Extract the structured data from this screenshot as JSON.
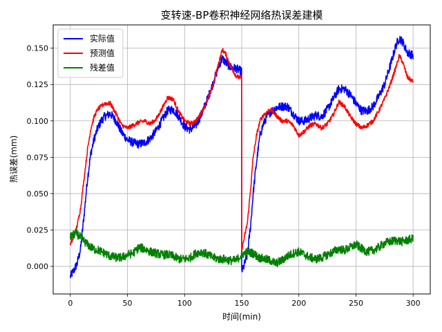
{
  "chart_data": {
    "type": "line",
    "title": "变转速-BP卷积神经网络热误差建模",
    "xlabel": "时间(min)",
    "ylabel": "热误差(mm)",
    "xlim": [
      -15,
      315
    ],
    "ylim": [
      -0.019,
      0.166
    ],
    "xticks": [
      0,
      50,
      100,
      150,
      200,
      250,
      300
    ],
    "yticks": [
      0.0,
      0.025,
      0.05,
      0.075,
      0.1,
      0.125,
      0.15
    ],
    "ytick_labels": [
      "0.000",
      "0.025",
      "0.050",
      "0.075",
      "0.100",
      "0.125",
      "0.150"
    ],
    "grid": true,
    "legend_position": "top-left",
    "series": [
      {
        "name": "实际值",
        "color": "#0000ff",
        "noise": 0.003,
        "x": [
          0,
          3,
          6,
          9,
          12,
          15,
          18,
          21,
          24,
          27,
          30,
          35,
          40,
          45,
          50,
          55,
          60,
          65,
          70,
          75,
          80,
          85,
          90,
          95,
          100,
          105,
          110,
          115,
          120,
          125,
          130,
          133,
          136,
          140,
          145,
          149.9,
          150,
          151,
          155,
          158,
          160,
          163,
          166,
          169,
          172,
          175,
          180,
          185,
          190,
          195,
          200,
          205,
          210,
          215,
          220,
          225,
          230,
          235,
          240,
          245,
          250,
          255,
          260,
          265,
          270,
          275,
          280,
          285,
          288,
          291,
          295,
          300
        ],
        "y": [
          -0.007,
          -0.003,
          0.002,
          0.012,
          0.035,
          0.06,
          0.078,
          0.088,
          0.095,
          0.1,
          0.103,
          0.105,
          0.1,
          0.092,
          0.087,
          0.085,
          0.084,
          0.085,
          0.088,
          0.093,
          0.1,
          0.107,
          0.108,
          0.103,
          0.096,
          0.094,
          0.097,
          0.105,
          0.115,
          0.126,
          0.138,
          0.143,
          0.14,
          0.137,
          0.136,
          0.134,
          -0.003,
          -0.002,
          0.008,
          0.03,
          0.05,
          0.072,
          0.09,
          0.098,
          0.103,
          0.106,
          0.109,
          0.11,
          0.11,
          0.105,
          0.1,
          0.1,
          0.102,
          0.104,
          0.103,
          0.108,
          0.115,
          0.122,
          0.122,
          0.118,
          0.112,
          0.107,
          0.107,
          0.11,
          0.117,
          0.125,
          0.138,
          0.152,
          0.157,
          0.154,
          0.147,
          0.145
        ]
      },
      {
        "name": "预测值",
        "color": "#ff0000",
        "noise": 0.0015,
        "x": [
          0,
          3,
          6,
          9,
          12,
          15,
          18,
          21,
          24,
          27,
          30,
          35,
          40,
          45,
          50,
          55,
          60,
          65,
          70,
          75,
          80,
          85,
          90,
          95,
          100,
          105,
          110,
          115,
          120,
          125,
          130,
          133,
          136,
          140,
          145,
          149.9,
          150,
          151,
          155,
          158,
          160,
          163,
          166,
          169,
          172,
          175,
          180,
          185,
          190,
          195,
          200,
          205,
          210,
          215,
          220,
          225,
          230,
          235,
          240,
          245,
          250,
          255,
          260,
          265,
          270,
          275,
          280,
          285,
          288,
          291,
          295,
          300
        ],
        "y": [
          0.015,
          0.02,
          0.028,
          0.04,
          0.06,
          0.08,
          0.095,
          0.103,
          0.108,
          0.11,
          0.112,
          0.112,
          0.105,
          0.097,
          0.095,
          0.097,
          0.099,
          0.1,
          0.098,
          0.101,
          0.108,
          0.116,
          0.115,
          0.106,
          0.1,
          0.098,
          0.1,
          0.106,
          0.114,
          0.125,
          0.14,
          0.149,
          0.146,
          0.138,
          0.131,
          0.129,
          0.012,
          0.015,
          0.03,
          0.055,
          0.075,
          0.09,
          0.1,
          0.104,
          0.106,
          0.108,
          0.104,
          0.1,
          0.1,
          0.097,
          0.09,
          0.093,
          0.097,
          0.098,
          0.095,
          0.098,
          0.104,
          0.113,
          0.11,
          0.103,
          0.098,
          0.095,
          0.097,
          0.1,
          0.107,
          0.115,
          0.125,
          0.137,
          0.145,
          0.14,
          0.13,
          0.127
        ]
      },
      {
        "name": "残差值",
        "color": "#008000",
        "noise": 0.003,
        "x": [
          0,
          5,
          10,
          15,
          20,
          25,
          30,
          35,
          40,
          45,
          50,
          55,
          60,
          65,
          70,
          75,
          80,
          85,
          90,
          95,
          100,
          105,
          110,
          115,
          120,
          125,
          130,
          135,
          140,
          145,
          150,
          155,
          160,
          165,
          170,
          175,
          180,
          185,
          190,
          195,
          200,
          205,
          210,
          215,
          220,
          225,
          230,
          235,
          240,
          245,
          250,
          255,
          260,
          265,
          270,
          275,
          280,
          285,
          290,
          295,
          300
        ],
        "y": [
          0.02,
          0.023,
          0.019,
          0.015,
          0.012,
          0.011,
          0.009,
          0.007,
          0.006,
          0.006,
          0.008,
          0.009,
          0.013,
          0.012,
          0.01,
          0.009,
          0.008,
          0.008,
          0.007,
          0.005,
          0.005,
          0.006,
          0.009,
          0.01,
          0.008,
          0.006,
          0.005,
          0.005,
          0.004,
          0.004,
          0.008,
          0.01,
          0.009,
          0.006,
          0.005,
          0.004,
          0.002,
          0.004,
          0.007,
          0.009,
          0.01,
          0.008,
          0.006,
          0.005,
          0.006,
          0.008,
          0.01,
          0.012,
          0.011,
          0.013,
          0.015,
          0.012,
          0.01,
          0.011,
          0.013,
          0.016,
          0.017,
          0.018,
          0.017,
          0.018,
          0.019
        ]
      }
    ]
  }
}
